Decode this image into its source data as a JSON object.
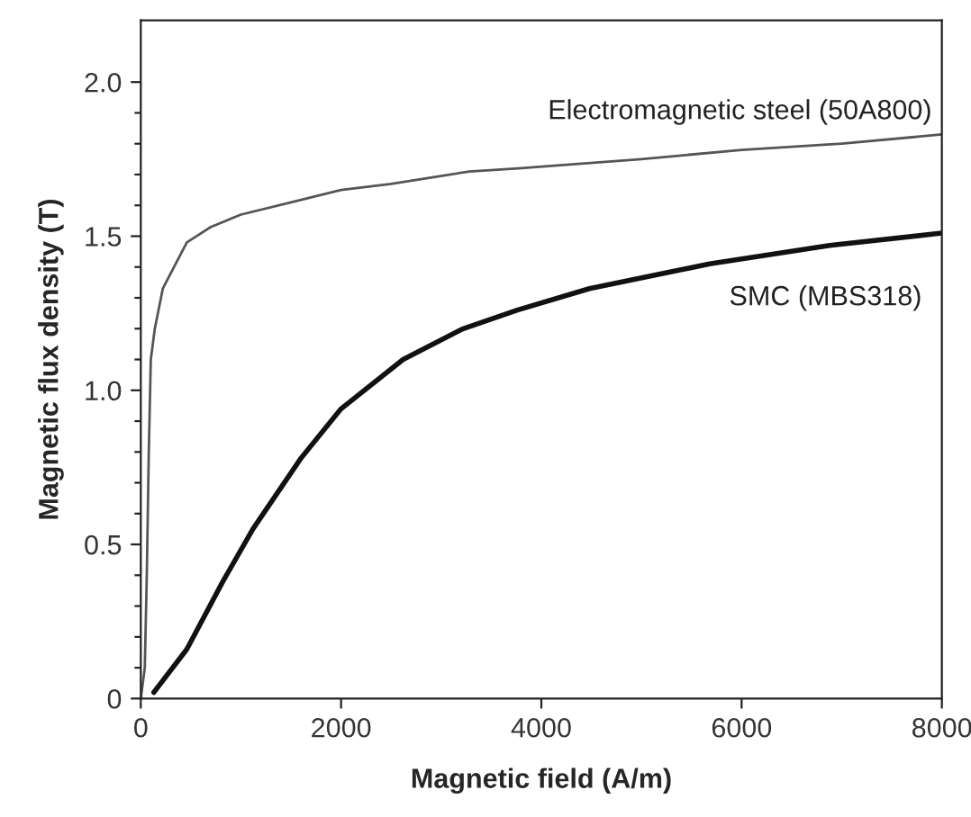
{
  "chart_data": {
    "type": "line",
    "xlabel": "Magnetic field (A/m)",
    "ylabel": "Magnetic flux density (T)",
    "xlim": [
      0,
      8000
    ],
    "xticks": [
      0,
      2000,
      4000,
      6000,
      8000
    ],
    "ylim": [
      0,
      2.2
    ],
    "yticks": [
      {
        "value": 0,
        "label": "0"
      },
      {
        "value": 0.1,
        "label": null
      },
      {
        "value": 0.2,
        "label": null
      },
      {
        "value": 0.3,
        "label": null
      },
      {
        "value": 0.4,
        "label": null
      },
      {
        "value": 0.5,
        "label": "0.5"
      },
      {
        "value": 0.6,
        "label": null
      },
      {
        "value": 0.7,
        "label": null
      },
      {
        "value": 0.8,
        "label": null
      },
      {
        "value": 0.9,
        "label": null
      },
      {
        "value": 1.0,
        "label": "1.0"
      },
      {
        "value": 1.1,
        "label": null
      },
      {
        "value": 1.2,
        "label": null
      },
      {
        "value": 1.3,
        "label": null
      },
      {
        "value": 1.4,
        "label": null
      },
      {
        "value": 1.5,
        "label": "1.5"
      },
      {
        "value": 1.6,
        "label": null
      },
      {
        "value": 1.7,
        "label": null
      },
      {
        "value": 1.8,
        "label": null
      },
      {
        "value": 1.9,
        "label": null
      },
      {
        "value": 2.0,
        "label": "2.0"
      }
    ],
    "grid": false,
    "legend": false,
    "marker": "none",
    "line_style": "solid",
    "series": [
      {
        "name": "Electromagnetic steel (50A800)",
        "color": "#555555",
        "x": [
          0,
          40,
          60,
          80,
          100,
          140,
          220,
          460,
          700,
          1000,
          1500,
          2000,
          2500,
          3280,
          3770,
          5000,
          6000,
          7000,
          8000
        ],
        "values": [
          0,
          0.1,
          0.4,
          0.8,
          1.1,
          1.2,
          1.33,
          1.48,
          1.53,
          1.57,
          1.61,
          1.65,
          1.67,
          1.71,
          1.72,
          1.75,
          1.78,
          1.8,
          1.83
        ]
      },
      {
        "name": "SMC (MBS318)",
        "color": "#111111",
        "x": [
          130,
          460,
          820,
          1120,
          1600,
          2000,
          2620,
          3220,
          3760,
          4480,
          5680,
          6880,
          8000
        ],
        "values": [
          0.02,
          0.16,
          0.38,
          0.55,
          0.78,
          0.94,
          1.1,
          1.2,
          1.26,
          1.33,
          1.41,
          1.47,
          1.51
        ]
      }
    ]
  }
}
